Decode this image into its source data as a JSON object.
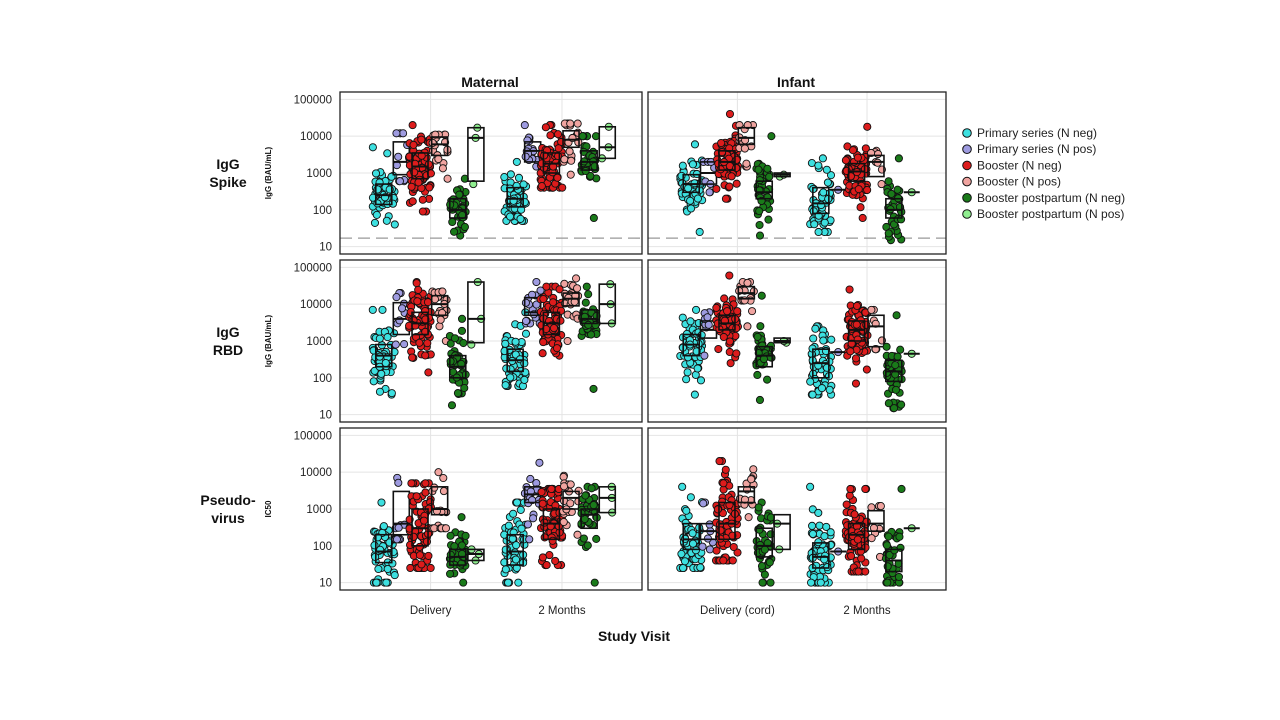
{
  "chart_data": {
    "type": "scatter",
    "subtype": "faceted beeswarm with boxplots",
    "y_scale": "log10",
    "ylim": [
      10,
      100000
    ],
    "y_ticks": [
      "10",
      "100",
      "1000",
      "10000",
      "100000"
    ],
    "threshold_line": {
      "value": 17,
      "rows": [
        "IgG Spike"
      ]
    },
    "columns": [
      "Maternal",
      "Infant"
    ],
    "rows": [
      {
        "id": "spike",
        "title_lines": [
          "IgG",
          "Spike"
        ],
        "ylabel": "IgG (BAU/mL)"
      },
      {
        "id": "rbd",
        "title_lines": [
          "IgG",
          "RBD"
        ],
        "ylabel": "IgG (BAU/mL)"
      },
      {
        "id": "pv",
        "title_lines": [
          "Pseudo-",
          "virus"
        ],
        "ylabel": "IC50"
      }
    ],
    "x_categories": {
      "Maternal": [
        "Delivery",
        "2 Months"
      ],
      "Infant": [
        "Delivery (cord)",
        "2 Months"
      ]
    },
    "xlabel": "Study Visit",
    "series": [
      {
        "name": "Primary series (N neg)",
        "color": "#3de0e0"
      },
      {
        "name": "Primary series (N pos)",
        "color": "#9e9be0"
      },
      {
        "name": "Booster (N neg)",
        "color": "#dd1c1c"
      },
      {
        "name": "Booster (N pos)",
        "color": "#f0a4a0"
      },
      {
        "name": "Booster postpartum (N neg)",
        "color": "#1a7a1a"
      },
      {
        "name": "Booster postpartum (N pos)",
        "color": "#90ee90"
      }
    ],
    "groups_note": "Each facet/category holds 6 series (in series order); value = [count, median, q1, q3, min, max]",
    "groups": {
      "spike": {
        "Maternal": [
          [
            [
              60,
              250,
              140,
              500,
              40,
              5000
            ],
            [
              10,
              2000,
              900,
              7000,
              600,
              12000
            ],
            [
              80,
              1500,
              700,
              3500,
              90,
              20000
            ],
            [
              18,
              6000,
              3000,
              9500,
              700,
              11000
            ],
            [
              40,
              100,
              60,
              200,
              20,
              700
            ],
            [
              3,
              9000,
              600,
              17000,
              500,
              17000
            ]
          ],
          [
            [
              60,
              200,
              120,
              400,
              50,
              2000
            ],
            [
              18,
              4000,
              2000,
              7000,
              1500,
              20000
            ],
            [
              80,
              1800,
              1000,
              3500,
              400,
              20000
            ],
            [
              20,
              8000,
              5000,
              14000,
              900,
              22000
            ],
            [
              40,
              2000,
              1200,
              4000,
              60,
              10000
            ],
            [
              3,
              5000,
              2500,
              18000,
              2500,
              18000
            ]
          ]
        ],
        "Infant": [
          [
            [
              60,
              500,
              300,
              900,
              25,
              6000
            ],
            [
              8,
              1000,
              500,
              2000,
              300,
              2000
            ],
            [
              80,
              2000,
              1200,
              4000,
              200,
              40000
            ],
            [
              14,
              9000,
              6000,
              17000,
              1500,
              20000
            ],
            [
              40,
              300,
              200,
              600,
              20,
              10000
            ],
            [
              2,
              900,
              800,
              1000,
              800,
              1000
            ]
          ],
          [
            [
              60,
              150,
              80,
              400,
              25,
              2500
            ],
            [
              1,
              350,
              350,
              350,
              350,
              350
            ],
            [
              80,
              1100,
              600,
              1800,
              60,
              18000
            ],
            [
              8,
              2000,
              800,
              3000,
              500,
              4000
            ],
            [
              40,
              100,
              60,
              200,
              15,
              2500
            ],
            [
              1,
              300,
              300,
              300,
              300,
              300
            ]
          ]
        ]
      },
      "rbd": {
        "Maternal": [
          [
            [
              60,
              400,
              200,
              800,
              35,
              7000
            ],
            [
              10,
              4000,
              1500,
              11000,
              800,
              20000
            ],
            [
              80,
              3000,
              1500,
              6000,
              140,
              40000
            ],
            [
              18,
              10000,
              5000,
              17000,
              1000,
              22000
            ],
            [
              40,
              200,
              100,
              400,
              18,
              4000
            ],
            [
              3,
              4000,
              900,
              40000,
              800,
              40000
            ]
          ],
          [
            [
              60,
              300,
              150,
              600,
              60,
              6000
            ],
            [
              18,
              6000,
              5000,
              15000,
              3000,
              40000
            ],
            [
              80,
              3000,
              1500,
              6000,
              400,
              30000
            ],
            [
              20,
              14000,
              9000,
              20000,
              1000,
              50000
            ],
            [
              40,
              4000,
              3000,
              7000,
              50,
              30000
            ],
            [
              3,
              10000,
              3000,
              35000,
              3000,
              35000
            ]
          ]
        ],
        "Infant": [
          [
            [
              60,
              800,
              400,
              1500,
              35,
              7000
            ],
            [
              8,
              2000,
              1200,
              3500,
              400,
              6000
            ],
            [
              80,
              3000,
              2000,
              5000,
              250,
              60000
            ],
            [
              14,
              20000,
              14000,
              30000,
              2500,
              40000
            ],
            [
              40,
              400,
              200,
              700,
              25,
              17000
            ],
            [
              2,
              1000,
              900,
              1200,
              900,
              1200
            ]
          ],
          [
            [
              60,
              250,
              100,
              600,
              35,
              2500
            ],
            [
              1,
              500,
              500,
              500,
              500,
              500
            ],
            [
              80,
              2000,
              1000,
              3500,
              70,
              25000
            ],
            [
              8,
              2500,
              700,
              5000,
              600,
              7000
            ],
            [
              40,
              150,
              80,
              300,
              15,
              5000
            ],
            [
              1,
              450,
              450,
              450,
              450,
              450
            ]
          ]
        ]
      },
      "pv": {
        "Maternal": [
          [
            [
              60,
              70,
              35,
              200,
              10,
              1500
            ],
            [
              10,
              400,
              200,
              3000,
              150,
              7000
            ],
            [
              80,
              300,
              100,
              1000,
              25,
              5000
            ],
            [
              18,
              1000,
              700,
              4000,
              300,
              10000
            ],
            [
              40,
              50,
              30,
              80,
              10,
              600
            ],
            [
              3,
              60,
              40,
              80,
              40,
              80
            ]
          ],
          [
            [
              60,
              70,
              30,
              200,
              10,
              1500
            ],
            [
              18,
              2500,
              1500,
              4000,
              150,
              18000
            ],
            [
              80,
              400,
              150,
              1000,
              30,
              3500
            ],
            [
              20,
              2000,
              1000,
              3000,
              200,
              8000
            ],
            [
              40,
              700,
              300,
              1000,
              10,
              4000
            ],
            [
              3,
              2000,
              800,
              4000,
              800,
              4000
            ]
          ]
        ],
        "Infant": [
          [
            [
              60,
              150,
              80,
              400,
              25,
              4000
            ],
            [
              8,
              250,
              150,
              400,
              80,
              1500
            ],
            [
              80,
              400,
              150,
              1500,
              40,
              20000
            ],
            [
              14,
              3000,
              1500,
              4000,
              600,
              12000
            ],
            [
              40,
              100,
              50,
              300,
              10,
              1500
            ],
            [
              2,
              400,
              80,
              700,
              80,
              700
            ]
          ],
          [
            [
              60,
              50,
              25,
              120,
              10,
              4000
            ],
            [
              1,
              70,
              70,
              70,
              70,
              70
            ],
            [
              80,
              200,
              80,
              400,
              20,
              3500
            ],
            [
              8,
              400,
              250,
              900,
              50,
              1200
            ],
            [
              40,
              40,
              20,
              80,
              10,
              3500
            ],
            [
              1,
              300,
              300,
              300,
              300,
              300
            ]
          ]
        ]
      }
    }
  }
}
